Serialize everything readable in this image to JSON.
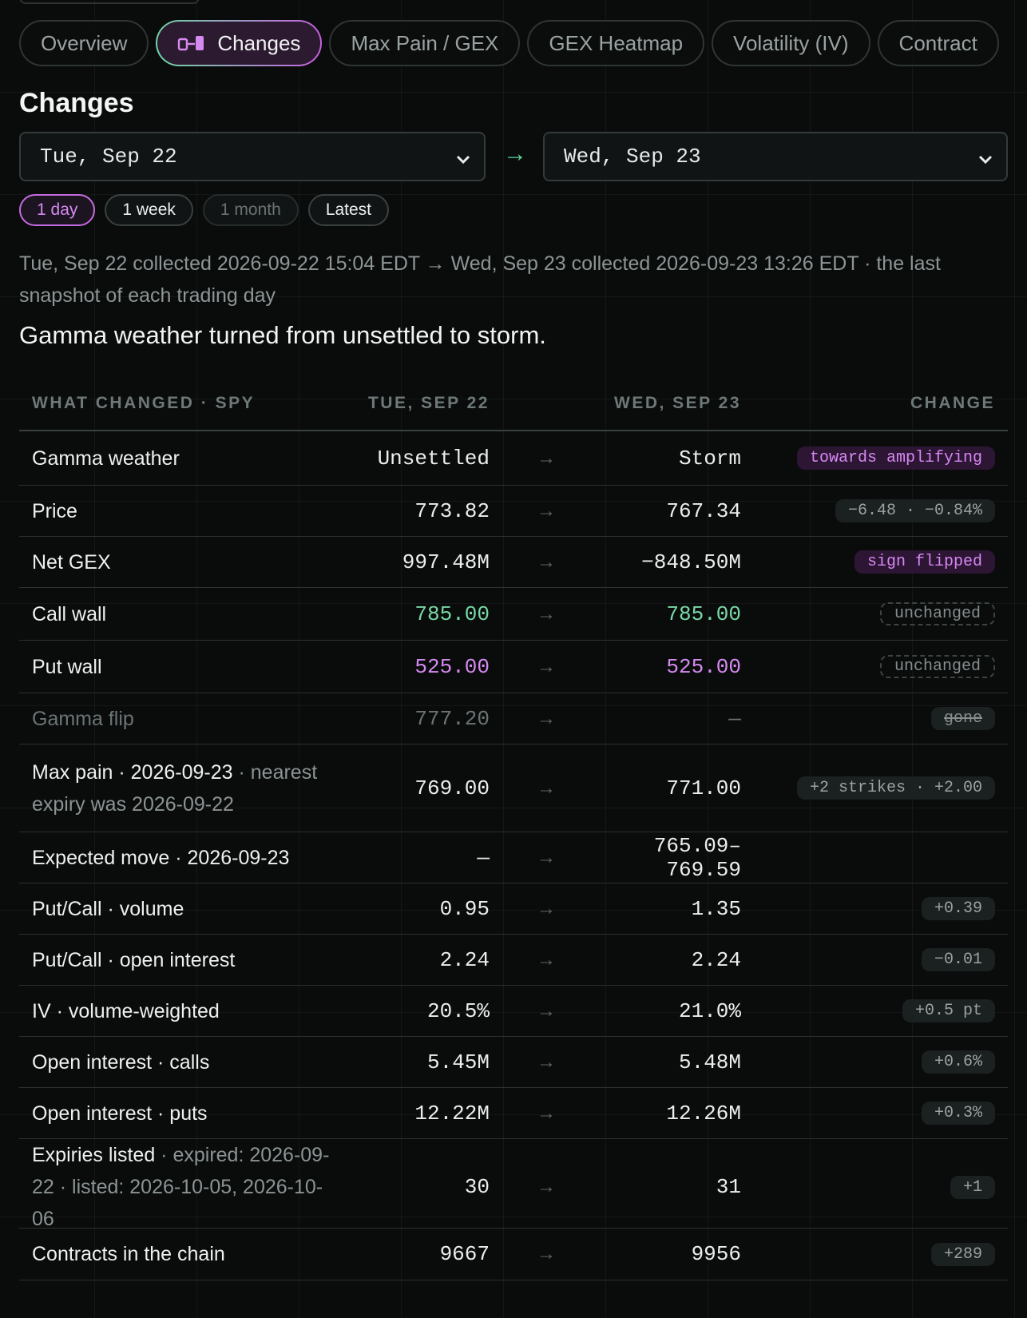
{
  "tabs": [
    {
      "label": "Overview",
      "active": false,
      "icon": ""
    },
    {
      "label": "Changes",
      "active": true,
      "icon": "diff-icon"
    },
    {
      "label": "Max Pain / GEX",
      "active": false,
      "icon": ""
    },
    {
      "label": "GEX Heatmap",
      "active": false,
      "icon": ""
    },
    {
      "label": "Volatility (IV)",
      "active": false,
      "icon": ""
    },
    {
      "label": "Contract",
      "active": false,
      "icon": ""
    }
  ],
  "page": {
    "title": "Changes",
    "from_date": "Tue, Sep 22",
    "to_date": "Wed, Sep 23",
    "arrow": "→"
  },
  "ranges": [
    {
      "label": "1 day",
      "state": "active"
    },
    {
      "label": "1 week",
      "state": "normal"
    },
    {
      "label": "1 month",
      "state": "dim"
    },
    {
      "label": "Latest",
      "state": "normal"
    }
  ],
  "meta": "Tue, Sep 22 collected 2026-09-22 15:04 EDT → Wed, Sep 23 collected 2026-09-23 13:26 EDT · the last snapshot of each trading day",
  "headline": "Gamma weather turned from unsettled to storm.",
  "table": {
    "headers": {
      "metric": "WHAT CHANGED · SPY",
      "from": "TUE, SEP 22",
      "to": "WED, SEP 23",
      "change": "CHANGE"
    },
    "arrow": "→",
    "rows": [
      {
        "label": "Gamma weather",
        "sub": "",
        "from": "Unsettled",
        "to": "Storm",
        "change": "towards amplifying",
        "badge": "purple",
        "color": "",
        "faded": false,
        "height": 68
      },
      {
        "label": "Price",
        "sub": "",
        "from": "773.82",
        "to": "767.34",
        "change": "−6.48 · −0.84%",
        "badge": "gray",
        "color": "",
        "faded": false,
        "height": 64
      },
      {
        "label": "Net GEX",
        "sub": "",
        "from": "997.48M",
        "to": "−848.50M",
        "change": "sign flipped",
        "badge": "purple",
        "color": "",
        "faded": false,
        "height": 64
      },
      {
        "label": "Call wall",
        "sub": "",
        "from": "785.00",
        "to": "785.00",
        "change": "unchanged",
        "badge": "dashed",
        "color": "green",
        "faded": false,
        "height": 66
      },
      {
        "label": "Put wall",
        "sub": "",
        "from": "525.00",
        "to": "525.00",
        "change": "unchanged",
        "badge": "dashed",
        "color": "violet",
        "faded": false,
        "height": 66
      },
      {
        "label": "Gamma flip",
        "sub": "",
        "from": "777.20",
        "to": "—",
        "change": "gone",
        "badge": "strike",
        "color": "",
        "faded": true,
        "height": 64
      },
      {
        "label": "Max pain · 2026-09-23",
        "sub": " · nearest expiry was 2026-09-22",
        "from": "769.00",
        "to": "771.00",
        "change": "+2 strikes · +2.00",
        "badge": "gray",
        "color": "",
        "faded": false,
        "height": 110
      },
      {
        "label": "Expected move · 2026-09-23",
        "sub": "",
        "from": "—",
        "to": "765.09–769.59",
        "change": "",
        "badge": "none",
        "color": "",
        "faded": false,
        "height": 64
      },
      {
        "label": "Put/Call · volume",
        "sub": "",
        "from": "0.95",
        "to": "1.35",
        "change": "+0.39",
        "badge": "gray",
        "color": "",
        "faded": false,
        "height": 64
      },
      {
        "label": "Put/Call · open interest",
        "sub": "",
        "from": "2.24",
        "to": "2.24",
        "change": "−0.01",
        "badge": "gray",
        "color": "",
        "faded": false,
        "height": 64
      },
      {
        "label": "IV · volume-weighted",
        "sub": "",
        "from": "20.5%",
        "to": "21.0%",
        "change": "+0.5 pt",
        "badge": "gray",
        "color": "",
        "faded": false,
        "height": 64
      },
      {
        "label": "Open interest · calls",
        "sub": "",
        "from": "5.45M",
        "to": "5.48M",
        "change": "+0.6%",
        "badge": "gray",
        "color": "",
        "faded": false,
        "height": 64
      },
      {
        "label": "Open interest · puts",
        "sub": "",
        "from": "12.22M",
        "to": "12.26M",
        "change": "+0.3%",
        "badge": "gray",
        "color": "",
        "faded": false,
        "height": 64
      },
      {
        "label": "Expiries listed",
        "sub": " · expired: 2026-09-22 · listed: 2026-10-05, 2026-10-06",
        "from": "30",
        "to": "31",
        "change": "+1",
        "badge": "gray",
        "color": "",
        "faded": false,
        "height": 112
      },
      {
        "label": "Contracts in the chain",
        "sub": "",
        "from": "9667",
        "to": "9956",
        "change": "+289",
        "badge": "gray",
        "color": "",
        "faded": false,
        "height": 65
      }
    ]
  },
  "colors": {
    "accent_purple": "#d58af0",
    "accent_green": "#78d9a6",
    "background": "#0a0c0c"
  }
}
